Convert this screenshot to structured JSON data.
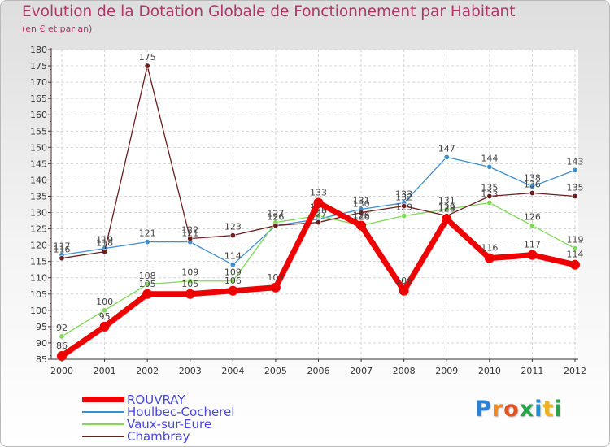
{
  "title": "Evolution de la Dotation Globale de Fonctionnement par Habitant",
  "subtitle": "(en € et par an)",
  "logo": {
    "letters": [
      "P",
      "r",
      "o",
      "x",
      "i",
      "t",
      "i"
    ],
    "colors": [
      "#2a82d6",
      "#f08a1e",
      "#e0531f",
      "#27a34a",
      "#1e8fd6",
      "#f0b31e",
      "#27a34a"
    ]
  },
  "chart_data": {
    "type": "line",
    "title": "Evolution de la Dotation Globale de Fonctionnement par Habitant",
    "subtitle": "(en € et par an)",
    "xlabel": "",
    "ylabel": "",
    "x": [
      "2000",
      "2001",
      "2002",
      "2003",
      "2004",
      "2005",
      "2006",
      "2007",
      "2008",
      "2009",
      "2010",
      "2011",
      "2012"
    ],
    "ylim": [
      85,
      180
    ],
    "yticks": [
      85,
      90,
      95,
      100,
      105,
      110,
      115,
      120,
      125,
      130,
      135,
      140,
      145,
      150,
      155,
      160,
      165,
      170,
      175,
      180
    ],
    "legend_position": "bottom-left",
    "series": [
      {
        "name": "ROUVRAY",
        "color": "#ee0000",
        "values": [
          86,
          95,
          105,
          105,
          106,
          107,
          133,
          126,
          106,
          128,
          116,
          117,
          114
        ],
        "labels": [
          "86",
          "95",
          "105",
          "105",
          "106",
          "107",
          "133",
          "126",
          "106",
          "128",
          "116",
          "117",
          "114"
        ]
      },
      {
        "name": "Houlbec-Cocherel",
        "color": "#3b8fd0",
        "values": [
          117,
          119,
          121,
          121,
          114,
          126,
          128,
          131,
          133,
          147,
          144,
          138,
          143
        ],
        "labels": [
          "117",
          "119",
          "121",
          "121",
          "114",
          "126",
          "128",
          "131",
          "133",
          "147",
          "144",
          "138",
          "143"
        ]
      },
      {
        "name": "Vaux-sur-Eure",
        "color": "#7ed957",
        "values": [
          92,
          100,
          108,
          109,
          109,
          127,
          129,
          126,
          129,
          131,
          133,
          126,
          119
        ],
        "labels": [
          "92",
          "100",
          "108",
          "109",
          "109",
          "127",
          "129",
          "126",
          "129",
          "131",
          "133",
          "126",
          "119"
        ]
      },
      {
        "name": "Chambray",
        "color": "#6b1f1f",
        "values": [
          116,
          118,
          175,
          122,
          123,
          126,
          127,
          130,
          132,
          129,
          135,
          136,
          135
        ],
        "labels": [
          "116",
          "118",
          "175",
          "122",
          "123",
          "126",
          "127",
          "130",
          "132",
          "129",
          "135",
          "136",
          "135"
        ]
      }
    ]
  }
}
